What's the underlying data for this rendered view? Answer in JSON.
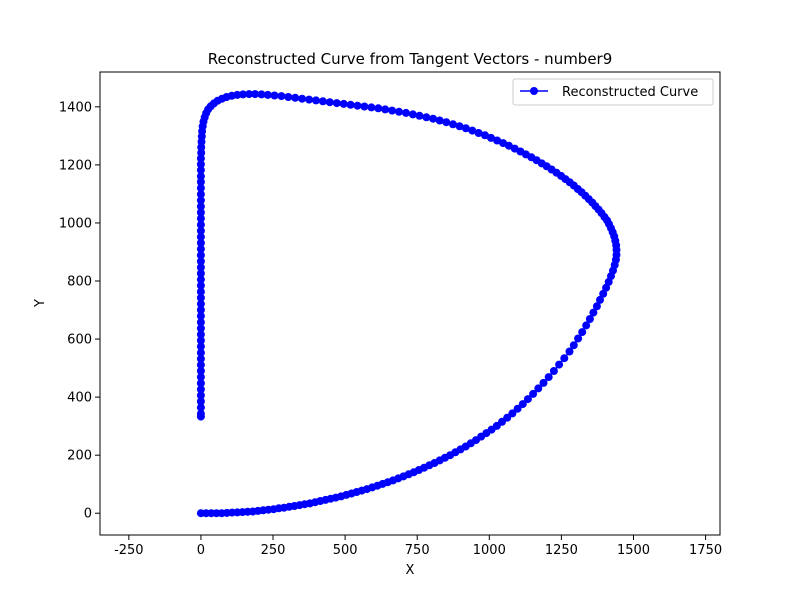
{
  "chart_data": {
    "type": "line",
    "title": "Reconstructed Curve from Tangent Vectors - number9",
    "xlabel": "X",
    "ylabel": "Y",
    "xlim": [
      -350,
      1800
    ],
    "ylim": [
      -75,
      1520
    ],
    "xticks": [
      -250,
      0,
      250,
      500,
      750,
      1000,
      1250,
      1500,
      1750
    ],
    "yticks": [
      0,
      200,
      400,
      600,
      800,
      1000,
      1200,
      1400
    ],
    "grid": false,
    "legend": {
      "position": "top-right"
    },
    "series": [
      {
        "name": "Reconstructed Curve",
        "color": "#0000ff",
        "marker": "circle",
        "x": [
          0,
          18,
          36,
          54,
          72,
          90,
          108,
          126,
          144,
          162,
          180,
          198,
          216,
          234,
          252,
          270,
          288,
          306,
          324,
          342,
          360,
          378,
          396,
          414,
          432,
          450,
          468,
          486,
          504,
          522,
          540,
          558,
          576,
          594,
          612,
          630,
          648,
          666,
          684,
          702,
          720,
          738,
          756,
          774,
          792,
          810,
          828,
          846,
          864,
          882,
          900,
          918,
          936,
          954,
          972,
          990,
          1008,
          1026,
          1044,
          1062,
          1080,
          1098,
          1116,
          1134,
          1152,
          1170,
          1188,
          1206,
          1224,
          1242,
          1260,
          1278,
          1293,
          1308,
          1322,
          1336,
          1349,
          1361,
          1373,
          1384,
          1395,
          1405,
          1414,
          1422,
          1429,
          1435,
          1439,
          1441,
          1441,
          1440,
          1437,
          1433,
          1428,
          1422,
          1415,
          1408,
          1399,
          1389,
          1379,
          1368,
          1357,
          1345,
          1333,
          1320,
          1307,
          1293,
          1279,
          1264,
          1249,
          1233,
          1216,
          1199,
          1182,
          1164,
          1146,
          1127,
          1108,
          1088,
          1068,
          1048,
          1027,
          1006,
          985,
          963,
          941,
          919,
          897,
          874,
          851,
          828,
          805,
          782,
          758,
          735,
          711,
          687,
          663,
          639,
          615,
          591,
          567,
          543,
          519,
          495,
          471,
          447,
          423,
          399,
          375,
          351,
          327,
          303,
          279,
          255,
          232,
          210,
          188,
          167,
          146,
          126,
          107,
          89,
          73,
          58,
          45,
          34,
          25,
          18,
          13,
          9,
          6,
          4,
          3,
          2,
          1,
          1,
          0,
          0,
          0,
          0,
          0,
          0,
          0,
          0,
          0,
          0,
          0,
          0,
          0,
          0,
          0,
          0,
          0,
          0,
          0,
          0,
          0,
          0,
          0,
          0,
          0,
          0,
          0,
          0,
          0,
          0,
          0,
          0,
          0,
          0,
          0,
          0,
          0,
          0,
          0,
          0,
          0,
          0,
          0,
          0
        ],
        "y": [
          0,
          0,
          0,
          0,
          0,
          1,
          2,
          3,
          4,
          5,
          6,
          8,
          10,
          12,
          14,
          17,
          19,
          22,
          25,
          28,
          31,
          34,
          38,
          42,
          46,
          50,
          54,
          58,
          63,
          68,
          73,
          78,
          83,
          89,
          95,
          101,
          107,
          113,
          120,
          127,
          134,
          141,
          149,
          157,
          165,
          173,
          182,
          191,
          200,
          210,
          220,
          230,
          241,
          252,
          264,
          276,
          288,
          301,
          315,
          329,
          344,
          360,
          376,
          393,
          411,
          430,
          449,
          469,
          490,
          512,
          534,
          557,
          579,
          602,
          624,
          647,
          669,
          691,
          713,
          735,
          756,
          777,
          797,
          817,
          836,
          855,
          873,
          890,
          907,
          923,
          939,
          954,
          968,
          982,
          996,
          1009,
          1021,
          1034,
          1046,
          1058,
          1070,
          1082,
          1094,
          1106,
          1117,
          1129,
          1140,
          1151,
          1162,
          1173,
          1184,
          1195,
          1205,
          1216,
          1226,
          1236,
          1246,
          1256,
          1266,
          1275,
          1284,
          1293,
          1302,
          1310,
          1318,
          1326,
          1333,
          1340,
          1347,
          1353,
          1359,
          1364,
          1369,
          1374,
          1379,
          1383,
          1387,
          1391,
          1395,
          1398,
          1401,
          1404,
          1407,
          1410,
          1413,
          1416,
          1419,
          1422,
          1425,
          1428,
          1431,
          1434,
          1437,
          1439,
          1441,
          1443,
          1444,
          1444,
          1443,
          1441,
          1438,
          1434,
          1428,
          1421,
          1412,
          1402,
          1391,
          1378,
          1364,
          1349,
          1333,
          1316,
          1298,
          1280,
          1261,
          1242,
          1222,
          1202,
          1182,
          1161,
          1141,
          1120,
          1099,
          1078,
          1057,
          1036,
          1015,
          994,
          973,
          952,
          931,
          910,
          889,
          868,
          847,
          826,
          805,
          784,
          763,
          742,
          721,
          700,
          679,
          658,
          637,
          616,
          595,
          574,
          553,
          532,
          511,
          490,
          469,
          448,
          427,
          406,
          385,
          364,
          343,
          333
        ]
      }
    ]
  }
}
